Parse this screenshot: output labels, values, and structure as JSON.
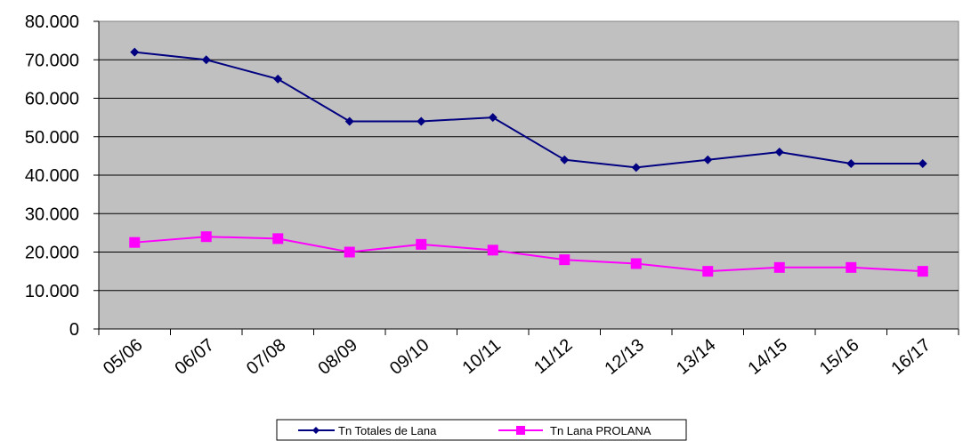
{
  "chart_data": {
    "type": "line",
    "categories": [
      "05/06",
      "06/07",
      "07/08",
      "08/09",
      "09/10",
      "10/11",
      "11/12",
      "12/13",
      "13/14",
      "14/15",
      "15/16",
      "16/17"
    ],
    "series": [
      {
        "name": "Tn Totales de Lana",
        "color": "#000080",
        "marker": "diamond",
        "values": [
          72000,
          70000,
          65000,
          54000,
          54000,
          55000,
          44000,
          42000,
          44000,
          46000,
          43000,
          43000
        ]
      },
      {
        "name": "Tn Lana PROLANA",
        "color": "#ff00ff",
        "marker": "square",
        "values": [
          22500,
          24000,
          23500,
          20000,
          22000,
          20500,
          18000,
          17000,
          15000,
          16000,
          16000,
          15000
        ]
      }
    ],
    "ylim": [
      0,
      80000
    ],
    "yticks": [
      "0",
      "10.000",
      "20.000",
      "30.000",
      "40.000",
      "50.000",
      "60.000",
      "70.000",
      "80.000"
    ],
    "plot_background": "#c0c0c0",
    "grid": true,
    "legend_position": "bottom-center"
  }
}
